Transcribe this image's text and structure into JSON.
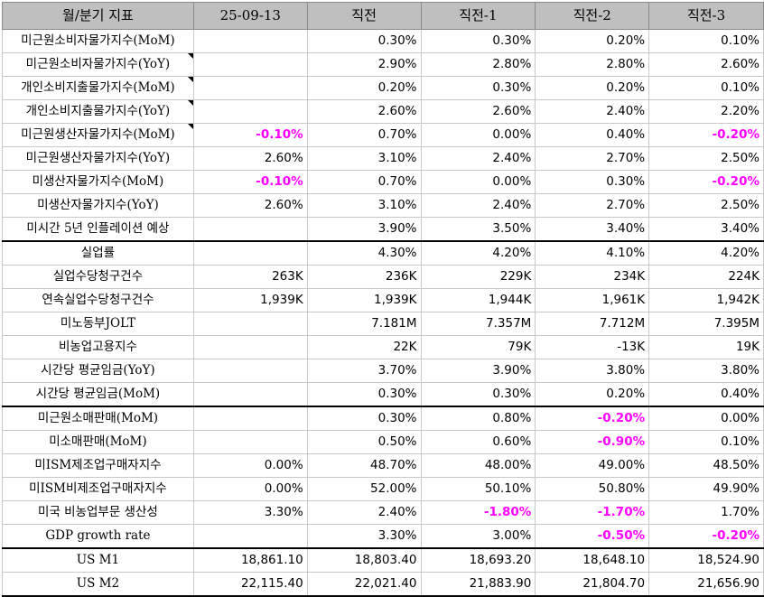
{
  "headers": [
    "월/분기 지표",
    "25-09-13",
    "직전",
    "직전-1",
    "직전-2",
    "직전-3"
  ],
  "rows": [
    {
      "label": "미근원소비자물가지수(MoM)",
      "note": false,
      "sep": false,
      "cells": [
        {
          "v": ""
        },
        {
          "v": "0.30%"
        },
        {
          "v": "0.30%"
        },
        {
          "v": "0.20%"
        },
        {
          "v": "0.10%"
        }
      ]
    },
    {
      "label": "미근원소비자물가지수(YoY)",
      "note": true,
      "sep": false,
      "cells": [
        {
          "v": ""
        },
        {
          "v": "2.90%"
        },
        {
          "v": "2.80%"
        },
        {
          "v": "2.80%"
        },
        {
          "v": "2.60%"
        }
      ]
    },
    {
      "label": "개인소비지출물가지수(MoM)",
      "note": true,
      "sep": false,
      "cells": [
        {
          "v": ""
        },
        {
          "v": "0.20%"
        },
        {
          "v": "0.30%"
        },
        {
          "v": "0.20%"
        },
        {
          "v": "0.10%"
        }
      ]
    },
    {
      "label": "개인소비지출물가지수(YoY)",
      "note": true,
      "sep": false,
      "cells": [
        {
          "v": ""
        },
        {
          "v": "2.60%"
        },
        {
          "v": "2.60%"
        },
        {
          "v": "2.40%"
        },
        {
          "v": "2.20%"
        }
      ]
    },
    {
      "label": "미근원생산자물가지수(MoM)",
      "note": true,
      "sep": false,
      "cells": [
        {
          "v": "-0.10%",
          "neg": true
        },
        {
          "v": "0.70%"
        },
        {
          "v": "0.00%"
        },
        {
          "v": "0.40%"
        },
        {
          "v": "-0.20%",
          "neg": true
        }
      ]
    },
    {
      "label": "미근원생산자물가지수(YoY)",
      "note": false,
      "sep": false,
      "cells": [
        {
          "v": "2.60%"
        },
        {
          "v": "3.10%"
        },
        {
          "v": "2.40%"
        },
        {
          "v": "2.70%"
        },
        {
          "v": "2.50%"
        }
      ]
    },
    {
      "label": "미생산자물가지수(MoM)",
      "note": false,
      "sep": false,
      "cells": [
        {
          "v": "-0.10%",
          "neg": true
        },
        {
          "v": "0.70%"
        },
        {
          "v": "0.00%"
        },
        {
          "v": "0.30%"
        },
        {
          "v": "-0.20%",
          "neg": true
        }
      ]
    },
    {
      "label": "미생산자물가지수(YoY)",
      "note": false,
      "sep": false,
      "cells": [
        {
          "v": "2.60%"
        },
        {
          "v": "3.10%"
        },
        {
          "v": "2.40%"
        },
        {
          "v": "2.70%"
        },
        {
          "v": "2.50%"
        }
      ]
    },
    {
      "label": "미시간 5년 인플레이션 예상",
      "note": false,
      "sep": false,
      "cells": [
        {
          "v": ""
        },
        {
          "v": "3.90%"
        },
        {
          "v": "3.50%"
        },
        {
          "v": "3.40%"
        },
        {
          "v": "3.40%"
        }
      ]
    },
    {
      "label": "실업률",
      "note": false,
      "sep": true,
      "cells": [
        {
          "v": ""
        },
        {
          "v": "4.30%"
        },
        {
          "v": "4.20%"
        },
        {
          "v": "4.10%"
        },
        {
          "v": "4.20%"
        }
      ]
    },
    {
      "label": "실업수당청구건수",
      "note": false,
      "sep": false,
      "cells": [
        {
          "v": "263K"
        },
        {
          "v": "236K"
        },
        {
          "v": "229K"
        },
        {
          "v": "234K"
        },
        {
          "v": "224K"
        }
      ]
    },
    {
      "label": "연속실업수당청구건수",
      "note": false,
      "sep": false,
      "cells": [
        {
          "v": "1,939K"
        },
        {
          "v": "1,939K"
        },
        {
          "v": "1,944K"
        },
        {
          "v": "1,961K"
        },
        {
          "v": "1,942K"
        }
      ]
    },
    {
      "label": "미노동부JOLT",
      "note": false,
      "sep": false,
      "cells": [
        {
          "v": ""
        },
        {
          "v": "7.181M"
        },
        {
          "v": "7.357M"
        },
        {
          "v": "7.712M"
        },
        {
          "v": "7.395M"
        }
      ]
    },
    {
      "label": "비농업고용지수",
      "note": false,
      "sep": false,
      "cells": [
        {
          "v": ""
        },
        {
          "v": "22K"
        },
        {
          "v": "79K"
        },
        {
          "v": "-13K"
        },
        {
          "v": "19K"
        }
      ]
    },
    {
      "label": "시간당 평균임금(YoY)",
      "note": false,
      "sep": false,
      "cells": [
        {
          "v": ""
        },
        {
          "v": "3.70%"
        },
        {
          "v": "3.90%"
        },
        {
          "v": "3.80%"
        },
        {
          "v": "3.80%"
        }
      ]
    },
    {
      "label": "시간당 평균임금(MoM)",
      "note": false,
      "sep": false,
      "cells": [
        {
          "v": ""
        },
        {
          "v": "0.30%"
        },
        {
          "v": "0.30%"
        },
        {
          "v": "0.20%"
        },
        {
          "v": "0.40%"
        }
      ]
    },
    {
      "label": "미근원소매판매(MoM)",
      "note": false,
      "sep": true,
      "cells": [
        {
          "v": ""
        },
        {
          "v": "0.30%"
        },
        {
          "v": "0.80%"
        },
        {
          "v": "-0.20%",
          "neg": true
        },
        {
          "v": "0.00%"
        }
      ]
    },
    {
      "label": "미소매판매(MoM)",
      "note": false,
      "sep": false,
      "cells": [
        {
          "v": ""
        },
        {
          "v": "0.50%"
        },
        {
          "v": "0.60%"
        },
        {
          "v": "-0.90%",
          "neg": true
        },
        {
          "v": "0.10%"
        }
      ]
    },
    {
      "label": "미ISM제조업구매자지수",
      "note": false,
      "sep": false,
      "cells": [
        {
          "v": "0.00%"
        },
        {
          "v": "48.70%"
        },
        {
          "v": "48.00%"
        },
        {
          "v": "49.00%"
        },
        {
          "v": "48.50%"
        }
      ]
    },
    {
      "label": "미ISM비제조업구매자지수",
      "note": false,
      "sep": false,
      "cells": [
        {
          "v": "0.00%"
        },
        {
          "v": "52.00%"
        },
        {
          "v": "50.10%"
        },
        {
          "v": "50.80%"
        },
        {
          "v": "49.90%"
        }
      ]
    },
    {
      "label": "미국 비농업부문 생산성",
      "note": false,
      "sep": false,
      "cells": [
        {
          "v": "3.30%"
        },
        {
          "v": "2.40%"
        },
        {
          "v": "-1.80%",
          "neg": true
        },
        {
          "v": "-1.70%",
          "neg": true
        },
        {
          "v": "1.70%"
        }
      ]
    },
    {
      "label": "GDP growth rate",
      "note": false,
      "sep": false,
      "cells": [
        {
          "v": ""
        },
        {
          "v": "3.30%"
        },
        {
          "v": "3.00%"
        },
        {
          "v": "-0.50%",
          "neg": true
        },
        {
          "v": "-0.20%",
          "neg": true
        }
      ]
    },
    {
      "label": "US M1",
      "note": false,
      "sep": true,
      "cells": [
        {
          "v": "18,861.10"
        },
        {
          "v": "18,803.40"
        },
        {
          "v": "18,693.20"
        },
        {
          "v": "18,648.10"
        },
        {
          "v": "18,524.90"
        }
      ]
    },
    {
      "label": "US M2",
      "note": false,
      "sep": false,
      "cells": [
        {
          "v": "22,115.40"
        },
        {
          "v": "22,021.40"
        },
        {
          "v": "21,883.90"
        },
        {
          "v": "21,804.70"
        },
        {
          "v": "21,656.90"
        }
      ]
    }
  ],
  "colors": {
    "header_bg": "#bfbfbf",
    "negative": "#ff00ff",
    "grid": "#c8c8c8"
  }
}
